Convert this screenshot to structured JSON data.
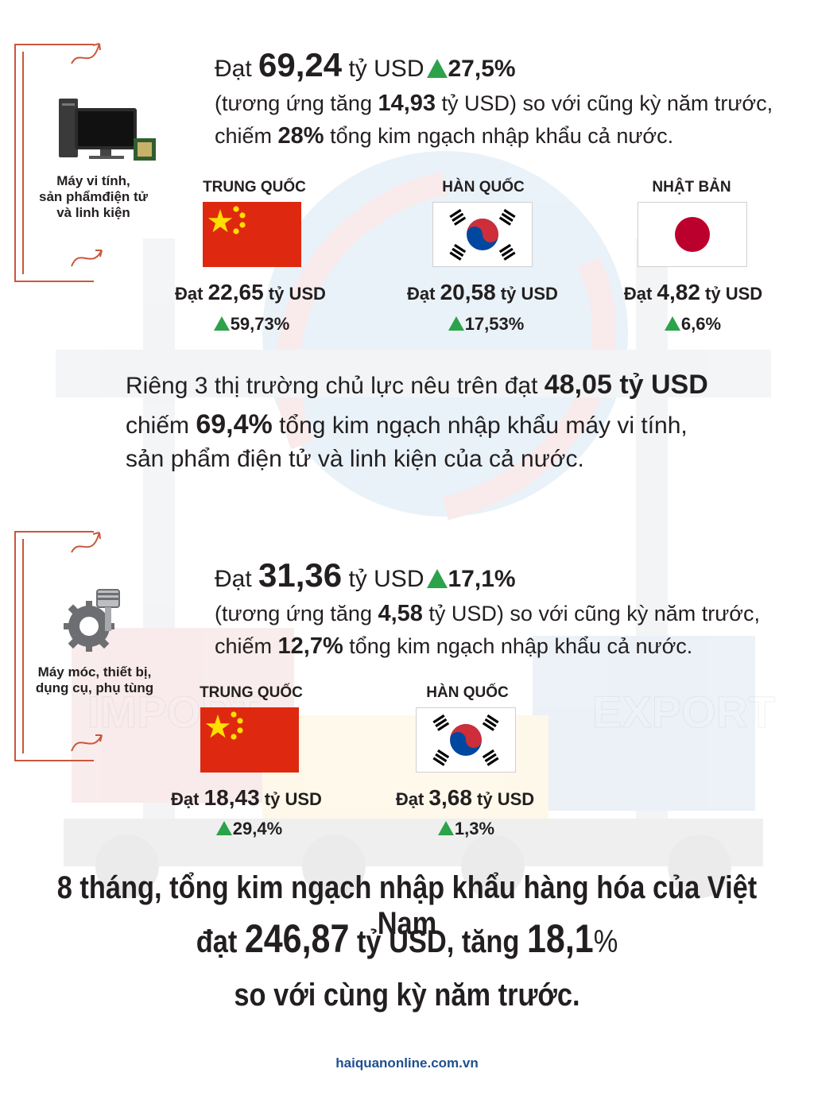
{
  "colors": {
    "accent_green": "#2ca24a",
    "frame_orange": "#c9573a",
    "china_red": "#de2910",
    "china_yellow": "#ffde00",
    "japan_red": "#bc002d",
    "korea_red": "#cd2e3a",
    "korea_blue": "#0047a0",
    "source_blue": "#1f4f8f"
  },
  "section1": {
    "category_icon": "computer-icon",
    "category_lines": [
      "Máy vi tính,",
      "sản phẩmđiện tử",
      "và linh kiện"
    ],
    "headline": {
      "prefix": "Đạt ",
      "value": "69,24",
      "unit": " tỷ USD",
      "growth": "27,5%"
    },
    "line1": {
      "pre": "(tương ứng tăng ",
      "value": "14,93",
      "post": " tỷ USD) so với cũng kỳ năm trước,"
    },
    "line2": {
      "pre": "chiếm ",
      "value": "28%",
      "post": " tổng kim ngạch nhập khẩu cả nước."
    },
    "markets": [
      {
        "country": "TRUNG QUỐC",
        "flag": "china-flag-icon",
        "prefix": "Đạt ",
        "value": "22,65",
        "unit": " tỷ USD",
        "growth": "59,73%"
      },
      {
        "country": "HÀN QUỐC",
        "flag": "korea-flag-icon",
        "prefix": "Đạt ",
        "value": "20,58",
        "unit": " tỷ USD",
        "growth": "17,53%"
      },
      {
        "country": "NHẬT BẢN",
        "flag": "japan-flag-icon",
        "prefix": "Đạt ",
        "value": "4,82",
        "unit": " tỷ USD",
        "growth": "6,6%"
      }
    ]
  },
  "middle": {
    "line1_pre": "Riêng 3 thị trường chủ lực nêu trên đạt ",
    "line1_value": "48,05 tỷ USD",
    "line2_pre": "chiếm ",
    "line2_value": "69,4%",
    "line2_post": " tổng kim ngạch nhập khẩu máy vi tính,",
    "line3": "sản phẩm điện tử và linh kiện của cả nước."
  },
  "section2": {
    "category_icon": "gear-piston-icon",
    "category_lines": [
      "Máy móc, thiết bị,",
      "dụng cụ, phụ tùng"
    ],
    "headline": {
      "prefix": "Đạt ",
      "value": "31,36",
      "unit": " tỷ USD",
      "growth": "17,1%"
    },
    "line1": {
      "pre": "(tương ứng tăng ",
      "value": "4,58",
      "post": " tỷ USD) so với cũng kỳ năm trước,"
    },
    "line2": {
      "pre": "chiếm ",
      "value": "12,7%",
      "post": " tổng kim ngạch nhập khẩu cả nước."
    },
    "markets": [
      {
        "country": "TRUNG QUỐC",
        "flag": "china-flag-icon",
        "prefix": "Đạt ",
        "value": "18,43",
        "unit": " tỷ USD",
        "growth": "29,4%"
      },
      {
        "country": "HÀN QUỐC",
        "flag": "korea-flag-icon",
        "prefix": "Đạt ",
        "value": "3,68",
        "unit": " tỷ USD",
        "growth": "1,3%"
      }
    ]
  },
  "background": {
    "container_left": "IMPORT",
    "container_right": "EXPORT"
  },
  "summary": {
    "line1": "8 tháng, tổng kim ngạch nhập khẩu hàng hóa của Việt Nam",
    "line2_pre": "đạt ",
    "line2_value": "246,87",
    "line2_mid": " tỷ USD, tăng ",
    "line2_pct": "18,1",
    "line2_suffix": "%",
    "line3": "so với cùng kỳ năm trước."
  },
  "source": "haiquanonline.com.vn"
}
